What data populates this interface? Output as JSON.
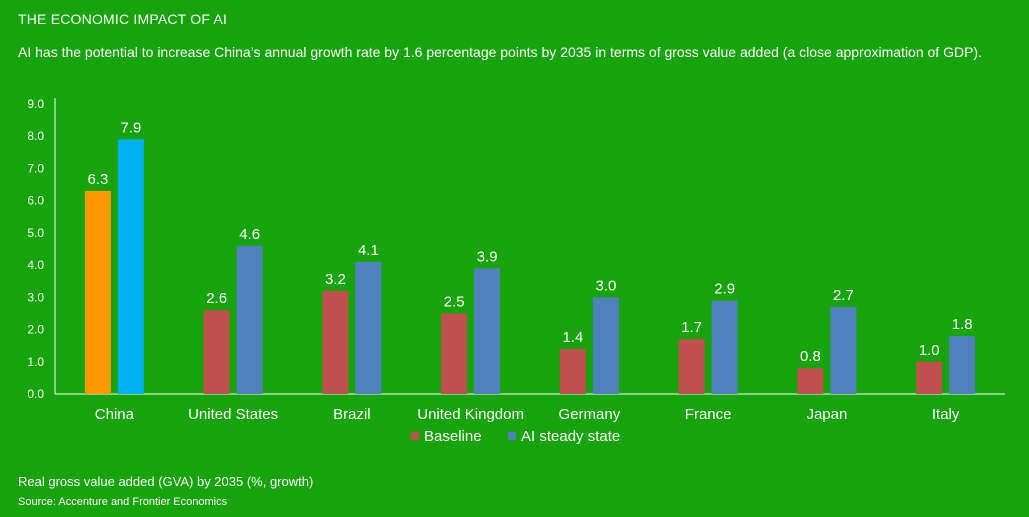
{
  "header": {
    "title": "THE ECONOMIC IMPACT OF AI",
    "subtitle": "AI has the potential to increase China’s annual growth rate by 1.6 percentage points by 2035 in terms of gross value added (a close approximation of GDP)."
  },
  "footer": {
    "note": "Real gross value added (GVA) by 2035 (%, growth)",
    "source": "Source: Accenture and Frontier Economics"
  },
  "colors": {
    "background": "#16a30b",
    "baseline": "#c0504d",
    "ai_steady_state": "#4f81bd",
    "china_baseline": "#ff9900",
    "china_ai": "#00b0f0"
  },
  "chart_data": {
    "type": "bar",
    "categories": [
      "China",
      "United States",
      "Brazil",
      "United Kingdom",
      "Germany",
      "France",
      "Japan",
      "Italy"
    ],
    "series": [
      {
        "name": "Baseline",
        "values": [
          6.3,
          2.6,
          3.2,
          2.5,
          1.4,
          1.7,
          0.8,
          1.0
        ]
      },
      {
        "name": "AI steady state",
        "values": [
          7.9,
          4.6,
          4.1,
          3.9,
          3.0,
          2.9,
          2.7,
          1.8
        ]
      }
    ],
    "ylim": [
      0,
      9
    ],
    "yticks": [
      "0.0",
      "1.0",
      "2.0",
      "3.0",
      "4.0",
      "5.0",
      "6.0",
      "7.0",
      "8.0",
      "9.0"
    ],
    "data_labels": [
      [
        "6.3",
        "2.6",
        "3.2",
        "2.5",
        "1.4",
        "1.7",
        "0.8",
        "1.0"
      ],
      [
        "7.9",
        "4.6",
        "4.1",
        "3.9",
        "3.0",
        "2.9",
        "2.7",
        "1.8"
      ]
    ],
    "legend": {
      "position": "bottom-center"
    },
    "grid": false
  }
}
